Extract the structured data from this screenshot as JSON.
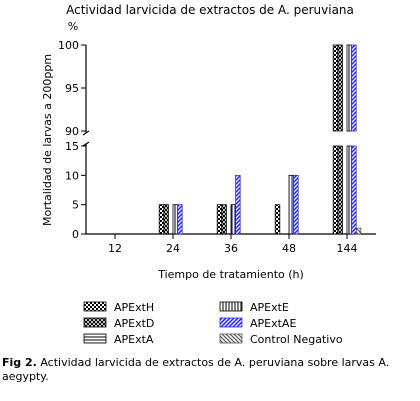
{
  "chart_data": {
    "type": "bar",
    "title": "Actividad larvicida de extractos de A. peruviana",
    "xlabel": "Tiempo de tratamiento (h)",
    "ylabel": "Mortalidad de larvas a 200ppm",
    "yunit": "%",
    "categories": [
      "12",
      "24",
      "36",
      "48",
      "144"
    ],
    "axis_break": {
      "lower": [
        0,
        15
      ],
      "upper": [
        90,
        100
      ]
    },
    "lower_ticks": [
      "0",
      "5",
      "10",
      "15"
    ],
    "upper_ticks": [
      "90",
      "95",
      "100"
    ],
    "series": [
      {
        "name": "APExtH",
        "values": [
          0,
          5,
          5,
          5,
          100
        ],
        "pattern": "checker",
        "color": "#000000"
      },
      {
        "name": "APExtD",
        "values": [
          0,
          5,
          5,
          0,
          100
        ],
        "pattern": "crosshatch",
        "color": "#000000"
      },
      {
        "name": "APExtA",
        "values": [
          0,
          0,
          0,
          0,
          0
        ],
        "pattern": "horizontal",
        "color": "#000000"
      },
      {
        "name": "APExtE",
        "values": [
          0,
          5,
          5,
          10,
          100
        ],
        "pattern": "vertical",
        "color": "#000000"
      },
      {
        "name": "APExtAE",
        "values": [
          0,
          5,
          10,
          10,
          100
        ],
        "pattern": "diagonal",
        "color": "#2b2bff"
      },
      {
        "name": "Control Negativo",
        "values": [
          0,
          0,
          0,
          0,
          1
        ],
        "pattern": "gray-diagonal",
        "color": "#555555"
      }
    ],
    "legend": "bottom"
  },
  "caption": {
    "label": "Fig 2.",
    "text": "Actividad larvicida de extractos de A. peruviana sobre larvas A. aegypty."
  }
}
